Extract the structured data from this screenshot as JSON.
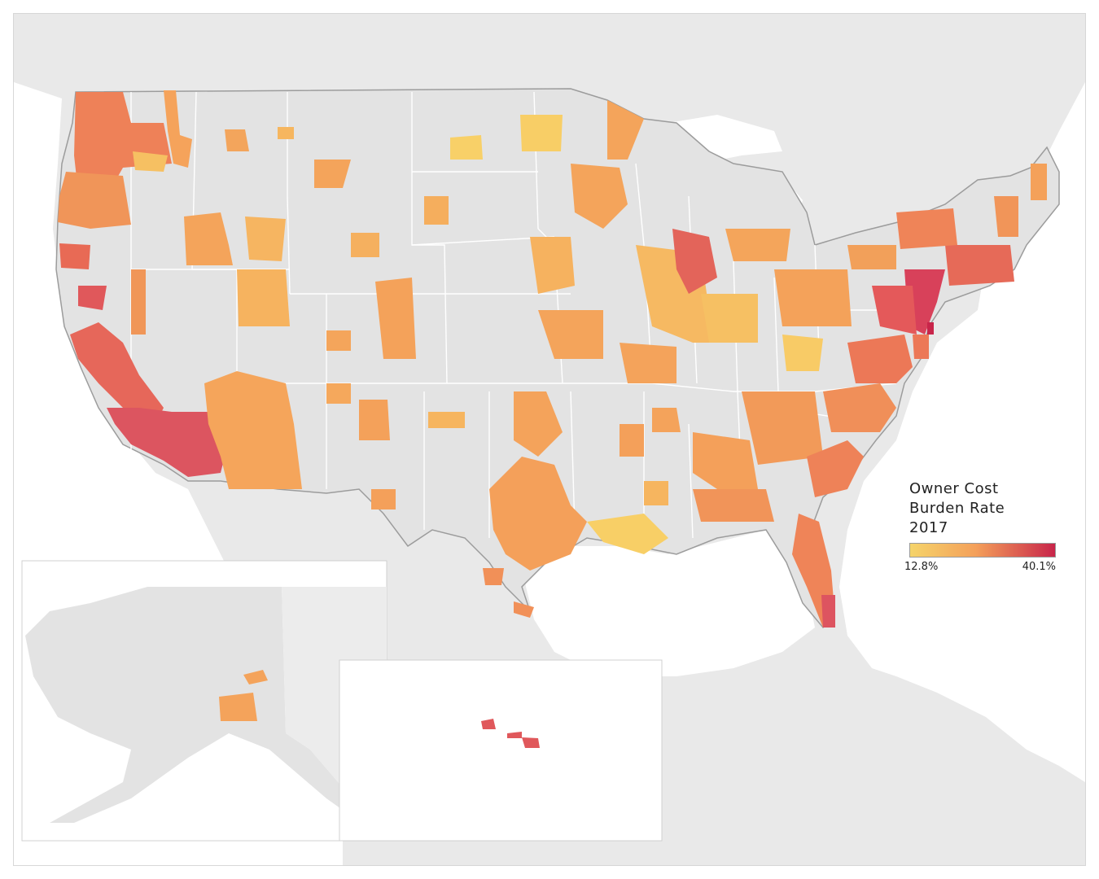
{
  "legend": {
    "title": "Owner Cost\nBurden Rate\n2017",
    "min_label": "12.8%",
    "max_label": "40.1%",
    "color_low": "#f5d46a",
    "color_mid": "#f4a05a",
    "color_high": "#c8254a"
  },
  "map": {
    "land_color": "#e6e6e6",
    "water_color": "#ffffff",
    "state_border_color": "#ffffff",
    "country_border_color": "#9c9c9c",
    "inset_border_color": "#d0d0d0",
    "insets": [
      "Alaska",
      "Hawaii"
    ]
  }
}
